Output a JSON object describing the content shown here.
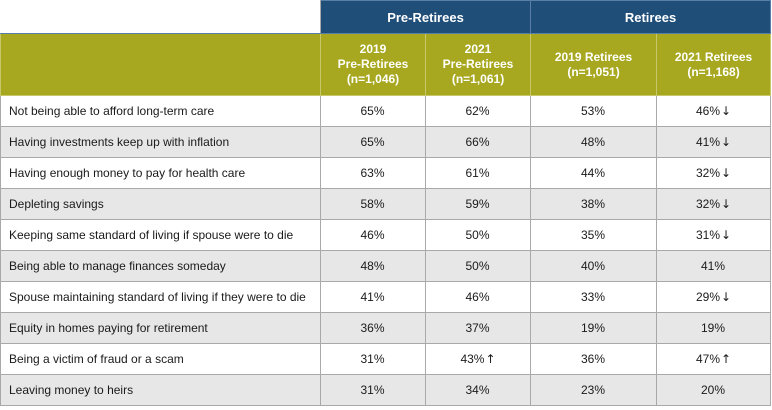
{
  "groups": {
    "pre_retirees": "Pre-Retirees",
    "retirees": "Retirees"
  },
  "columns": [
    {
      "line1": "2019",
      "line2": "Pre-Retirees",
      "line3": "(n=1,046)"
    },
    {
      "line1": "2021",
      "line2": "Pre-Retirees",
      "line3": "(n=1,061)"
    },
    {
      "line1": "2019 Retirees",
      "line2": "(n=1,051)"
    },
    {
      "line1": "2021 Retirees",
      "line2": "(n=1,168)"
    }
  ],
  "rows": [
    {
      "label": "Not being able to afford long-term care",
      "values": [
        "65%",
        "62%",
        "53%",
        "46%"
      ],
      "arrows": [
        "",
        "",
        "",
        "↓"
      ]
    },
    {
      "label": "Having investments keep up with inflation",
      "values": [
        "65%",
        "66%",
        "48%",
        "41%"
      ],
      "arrows": [
        "",
        "",
        "",
        "↓"
      ]
    },
    {
      "label": "Having enough money to pay for health care",
      "values": [
        "63%",
        "61%",
        "44%",
        "32%"
      ],
      "arrows": [
        "",
        "",
        "",
        "↓"
      ]
    },
    {
      "label": "Depleting savings",
      "values": [
        "58%",
        "59%",
        "38%",
        "32%"
      ],
      "arrows": [
        "",
        "",
        "",
        "↓"
      ]
    },
    {
      "label": "Keeping same standard of living if spouse were to die",
      "values": [
        "46%",
        "50%",
        "35%",
        "31%"
      ],
      "arrows": [
        "",
        "",
        "",
        "↓"
      ]
    },
    {
      "label": "Being able to manage finances someday",
      "values": [
        "48%",
        "50%",
        "40%",
        "41%"
      ],
      "arrows": [
        "",
        "",
        "",
        ""
      ]
    },
    {
      "label": "Spouse maintaining standard of living if they were to die",
      "values": [
        "41%",
        "46%",
        "33%",
        "29%"
      ],
      "arrows": [
        "",
        "",
        "",
        "↓"
      ]
    },
    {
      "label": "Equity in homes paying for retirement",
      "values": [
        "36%",
        "37%",
        "19%",
        "19%"
      ],
      "arrows": [
        "",
        "",
        "",
        ""
      ]
    },
    {
      "label": "Being a victim of fraud or a scam",
      "values": [
        "31%",
        "43%",
        "36%",
        "47%"
      ],
      "arrows": [
        "",
        "↑",
        "",
        "↑"
      ]
    },
    {
      "label": "Leaving money to heirs",
      "values": [
        "31%",
        "34%",
        "23%",
        "20%"
      ],
      "arrows": [
        "",
        "",
        "",
        ""
      ]
    }
  ]
}
